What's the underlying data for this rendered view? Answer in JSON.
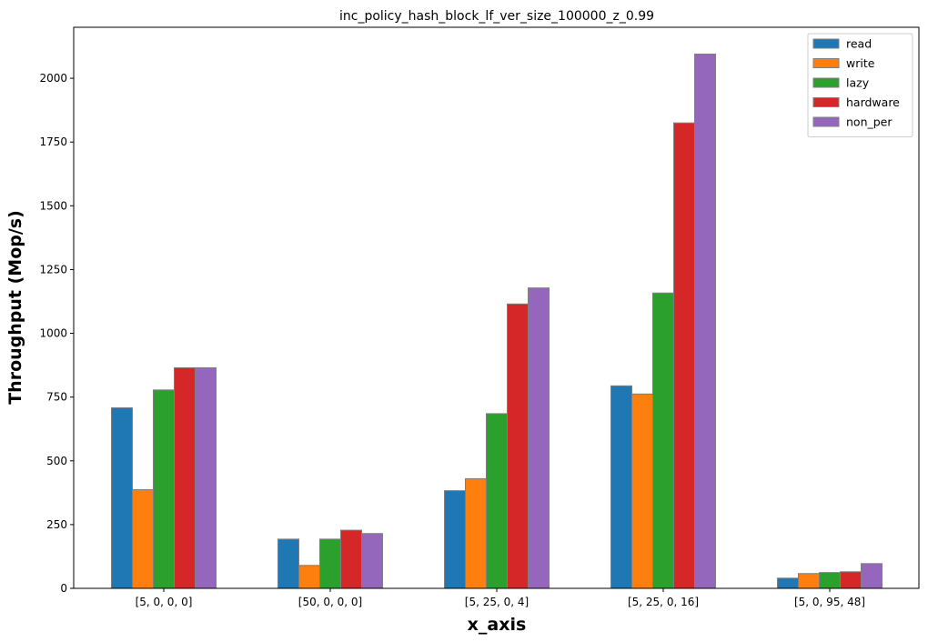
{
  "chart_data": {
    "type": "bar",
    "title": "inc_policy_hash_block_lf_ver_size_100000_z_0.99",
    "xlabel": "x_axis",
    "ylabel": "Throughput (Mop/s)",
    "categories": [
      "[5, 0, 0, 0]",
      "[50, 0, 0, 0]",
      "[5, 25, 0, 4]",
      "[5, 25, 0, 16]",
      "[5, 0, 95, 48]"
    ],
    "ylim": [
      0,
      2200
    ],
    "yticks": [
      0,
      250,
      500,
      750,
      1000,
      1250,
      1500,
      1750,
      2000
    ],
    "grid": false,
    "legend_position": "top-right",
    "series": [
      {
        "name": "read",
        "color": "#1f77b4",
        "values": [
          708,
          193,
          383,
          794,
          40
        ]
      },
      {
        "name": "write",
        "color": "#ff7f0e",
        "values": [
          387,
          90,
          430,
          762,
          58
        ]
      },
      {
        "name": "lazy",
        "color": "#2ca02c",
        "values": [
          778,
          193,
          685,
          1158,
          62
        ]
      },
      {
        "name": "hardware",
        "color": "#d62728",
        "values": [
          865,
          228,
          1115,
          1825,
          65
        ]
      },
      {
        "name": "non_per",
        "color": "#9467bd",
        "values": [
          865,
          215,
          1178,
          2095,
          97
        ]
      }
    ]
  }
}
